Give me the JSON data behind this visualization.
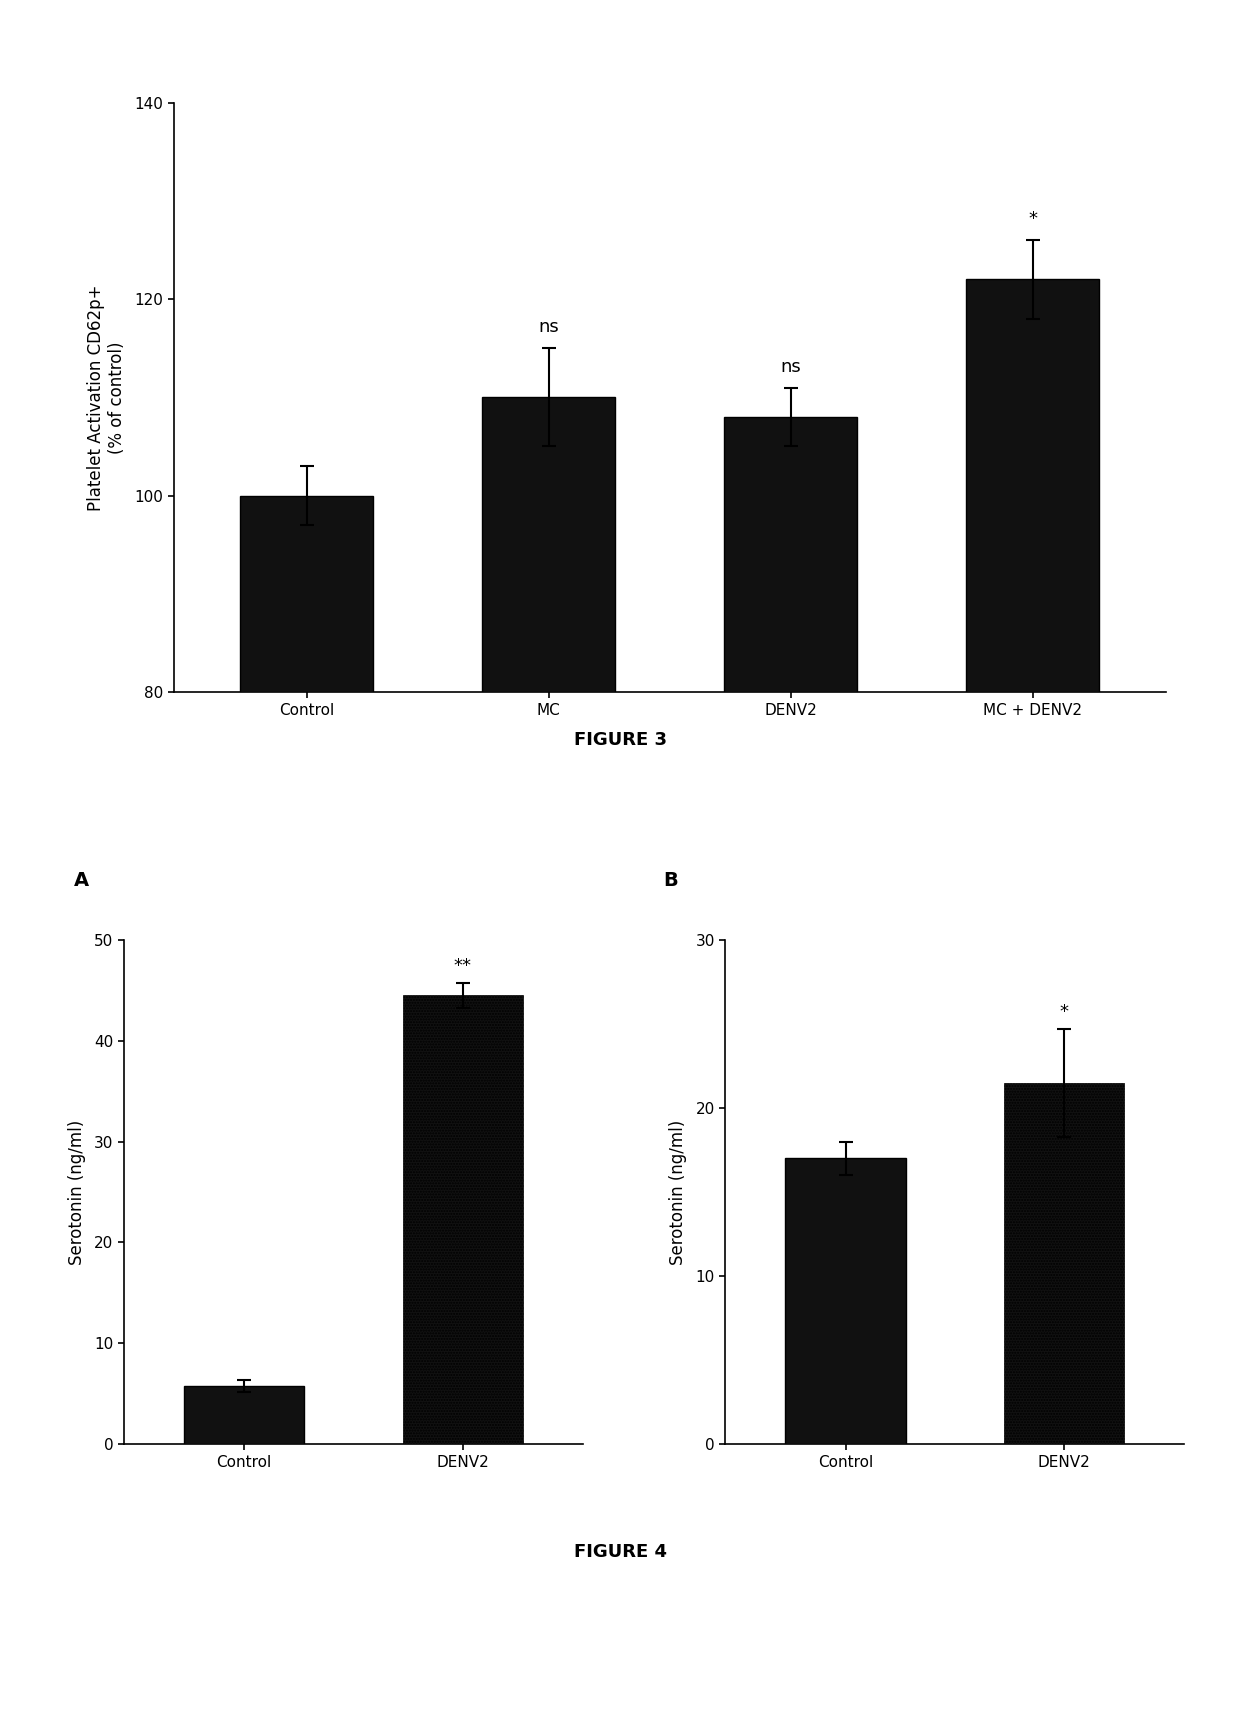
{
  "fig3": {
    "categories": [
      "Control",
      "MC",
      "DENV2",
      "MC + DENV2"
    ],
    "values": [
      100,
      110,
      108,
      122
    ],
    "errors": [
      3,
      5,
      3,
      4
    ],
    "ylabel_line1": "Platelet Activation CD62p+",
    "ylabel_line2": "(% of control)",
    "ylim": [
      80,
      140
    ],
    "yticks": [
      80,
      100,
      120,
      140
    ],
    "annotations": [
      "",
      "ns",
      "ns",
      "*"
    ],
    "bar_color": "#111111",
    "figure_label": "FIGURE 3"
  },
  "fig4a": {
    "categories": [
      "Control",
      "DENV2"
    ],
    "values": [
      5.8,
      44.5
    ],
    "errors": [
      0.6,
      1.2
    ],
    "ylabel": "Serotonin (ng/ml)",
    "ylim": [
      0,
      50
    ],
    "yticks": [
      0,
      10,
      20,
      30,
      40,
      50
    ],
    "annotations": [
      "",
      "**"
    ],
    "panel_label": "A"
  },
  "fig4b": {
    "categories": [
      "Control",
      "DENV2"
    ],
    "values": [
      17,
      21.5
    ],
    "errors": [
      1.0,
      3.2
    ],
    "ylabel": "Serotonin (ng/ml)",
    "ylim": [
      0,
      30
    ],
    "yticks": [
      0,
      10,
      20,
      30
    ],
    "annotations": [
      "",
      "*"
    ],
    "panel_label": "B"
  },
  "figure4_label": "FIGURE 4",
  "background_color": "#ffffff",
  "bar_width": 0.55,
  "fontsize_axis": 12,
  "fontsize_tick": 11,
  "fontsize_annot": 13,
  "fontsize_figure_label": 13,
  "fontsize_panel_label": 14
}
